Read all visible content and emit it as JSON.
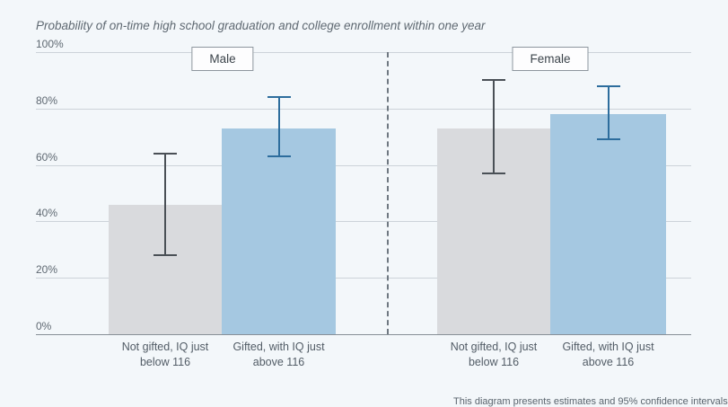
{
  "page": {
    "background": "#f3f7fa"
  },
  "chart_data": {
    "type": "bar",
    "title": "Probability of on-time high school graduation and college enrollment within one year",
    "xlabel": "",
    "ylabel": "",
    "ylim": [
      0,
      100
    ],
    "grid": true,
    "yticks": [
      100,
      80,
      60,
      40,
      20,
      0
    ],
    "ytick_labels": [
      "100%",
      "80%",
      "60%",
      "40%",
      "20%",
      "0%"
    ],
    "panels": [
      {
        "label": "Male",
        "bars": [
          {
            "category": "Not gifted, IQ just below 116",
            "category_lines": [
              "Not gifted, IQ just",
              "below 116"
            ],
            "value": 46,
            "ci_low": 28,
            "ci_high": 64,
            "style": "gray"
          },
          {
            "category": "Gifted, with IQ just above 116",
            "category_lines": [
              "Gifted, with IQ just",
              "above 116"
            ],
            "value": 73,
            "ci_low": 63,
            "ci_high": 84,
            "style": "blue"
          }
        ]
      },
      {
        "label": "Female",
        "bars": [
          {
            "category": "Not gifted, IQ just below 116",
            "category_lines": [
              "Not gifted, IQ just",
              "below 116"
            ],
            "value": 73,
            "ci_low": 57,
            "ci_high": 90,
            "style": "gray"
          },
          {
            "category": "Gifted, with IQ just above 116",
            "category_lines": [
              "Gifted, with IQ just",
              "above 116"
            ],
            "value": 78,
            "ci_low": 69,
            "ci_high": 88,
            "style": "blue"
          }
        ]
      }
    ],
    "colors": {
      "gray_bar": "#d9dadd",
      "blue_bar": "#a5c8e1",
      "gray_error": "#4a5056",
      "blue_error": "#2d6d9d",
      "gridline": "#ccd3d9",
      "axis_line": "#878f96",
      "divider": "#6f7881"
    },
    "legend_position": "none",
    "footnote": "This diagram presents estimates and 95% confidence intervals"
  }
}
